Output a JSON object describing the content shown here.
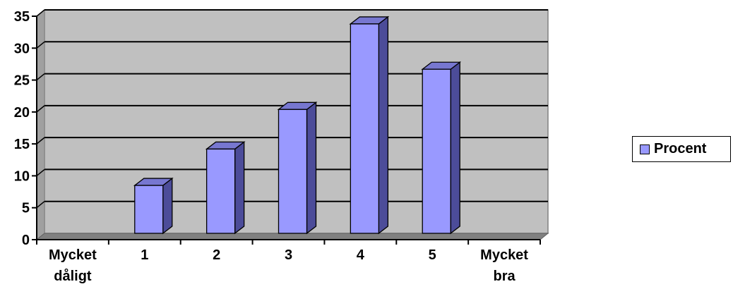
{
  "chart_data": {
    "type": "bar",
    "categories": [
      "Mycket dåligt",
      "1",
      "2",
      "3",
      "4",
      "5",
      "Mycket bra"
    ],
    "category_lines": [
      [
        "Mycket",
        "dåligt"
      ],
      [
        "1"
      ],
      [
        "2"
      ],
      [
        "3"
      ],
      [
        "4"
      ],
      [
        "5"
      ],
      [
        "Mycket",
        "bra"
      ]
    ],
    "series": [
      {
        "name": "Procent",
        "values": [
          0,
          7.5,
          13.2,
          19.4,
          32.8,
          25.7,
          0
        ]
      }
    ],
    "ylim": [
      0,
      35
    ],
    "yticks": [
      "0",
      "5",
      "10",
      "15",
      "20",
      "25",
      "30",
      "35"
    ],
    "grid": true,
    "legend_position": "right",
    "three_d": true
  },
  "colors": {
    "bar_front": "#9999ff",
    "bar_side": "#4c4c99",
    "bar_top": "#7777d0",
    "plot_wall": "#c0c0c0",
    "floor": "#808080",
    "gridline": "#000000"
  }
}
